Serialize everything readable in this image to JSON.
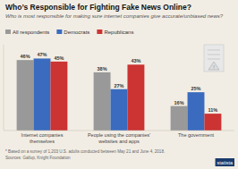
{
  "chart_data": {
    "type": "bar",
    "title": "Who’s Responsible for Fighting Fake News Online?",
    "subtitle": "Who is most responsible for making sure internet companies give accurate/unbiased news?",
    "categories": [
      "Internet companies\nthemselves",
      "People using the companies'\nwebsites and apps",
      "The government"
    ],
    "series": [
      {
        "name": "All respondents",
        "color": "#999999",
        "values": [
          46,
          38,
          16
        ],
        "value_labels": [
          "46%",
          "38%",
          "16%"
        ]
      },
      {
        "name": "Democrats",
        "color": "#3a6bbf",
        "values": [
          47,
          27,
          25
        ],
        "value_labels": [
          "47%",
          "27%",
          "25%"
        ]
      },
      {
        "name": "Republicans",
        "color": "#cc3333",
        "values": [
          45,
          43,
          11
        ],
        "value_labels": [
          "45%",
          "43%",
          "11%"
        ]
      }
    ],
    "ylim": [
      0,
      56
    ],
    "tick_labels": "x",
    "data_labels": true,
    "legend": "upper left",
    "annotations": [
      "* Based on a survey of 1,203 U.S. adults conducted between May 21 and June 4, 2018.",
      "Sources: Gallup, Knight Foundation",
      "statista",
      "!"
    ]
  }
}
